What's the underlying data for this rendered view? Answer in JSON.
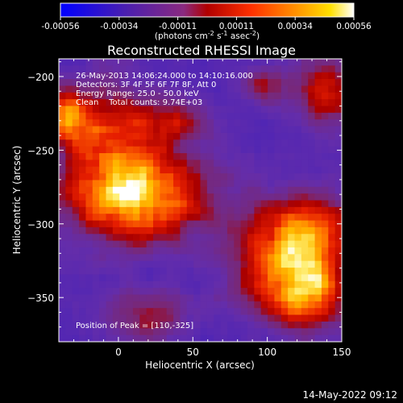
{
  "colorbar": {
    "ticks": [
      "-0.00056",
      "-0.00034",
      "-0.00011",
      "0.00011",
      "0.00034",
      "0.00056"
    ],
    "unit_main": "(photons cm",
    "unit_exp1": "-2",
    "unit_mid": " s",
    "unit_exp2": "-1",
    "unit_end": " asec",
    "unit_exp3": "-2",
    "unit_close": ")"
  },
  "chart_data": {
    "type": "heatmap",
    "title": "Reconstructed RHESSI Image",
    "xlabel": "Heliocentric X (arcsec)",
    "ylabel": "Heliocentric Y (arcsec)",
    "xlim": [
      -40,
      150
    ],
    "ylim": [
      -380,
      -188
    ],
    "x_ticks": [
      "0",
      "50",
      "100",
      "150"
    ],
    "y_ticks": [
      "-200",
      "-250",
      "-300",
      "-350"
    ],
    "x_tick_values": [
      0,
      50,
      100,
      150
    ],
    "y_tick_values": [
      -200,
      -250,
      -300,
      -350
    ],
    "value_range": [
      -0.00056,
      0.00056
    ],
    "colormap": [
      "#0000ff",
      "#3a1fa8",
      "#6a2ea0",
      "#a00000",
      "#ff2a00",
      "#ff7a00",
      "#ffd000",
      "#ffffe0"
    ],
    "annotations": [
      "26-May-2013 14:06:24.000 to 14:10:16.000",
      "Detectors: 3F 4F 5F 6F 7F 8F, Att 0",
      "Energy Range: 25.0 - 50.0 keV",
      "Clean    Total counts: 9.74E+03"
    ],
    "peak_label": "Position of Peak = [110,-325]",
    "peak": [
      110,
      -325
    ],
    "hotspots": [
      {
        "x": 112,
        "y": -322,
        "sx": 22,
        "sy": 24,
        "amp": 1.0
      },
      {
        "x": 130,
        "y": -345,
        "sx": 16,
        "sy": 18,
        "amp": 0.65
      },
      {
        "x": 20,
        "y": -282,
        "sx": 30,
        "sy": 20,
        "amp": 0.8
      },
      {
        "x": -5,
        "y": -255,
        "sx": 22,
        "sy": 30,
        "amp": 0.75
      },
      {
        "x": -33,
        "y": -228,
        "sx": 9,
        "sy": 11,
        "amp": 0.85
      },
      {
        "x": 38,
        "y": -232,
        "sx": 14,
        "sy": 10,
        "amp": 0.45
      },
      {
        "x": 140,
        "y": -210,
        "sx": 14,
        "sy": 18,
        "amp": 0.5
      },
      {
        "x": 98,
        "y": -207,
        "sx": 12,
        "sy": 9,
        "amp": 0.35
      },
      {
        "x": 20,
        "y": -362,
        "sx": 20,
        "sy": 12,
        "amp": 0.35
      },
      {
        "x": 135,
        "y": -300,
        "sx": 14,
        "sy": 14,
        "amp": 0.45
      }
    ]
  },
  "footer_timestamp": "14-May-2022 09:12"
}
